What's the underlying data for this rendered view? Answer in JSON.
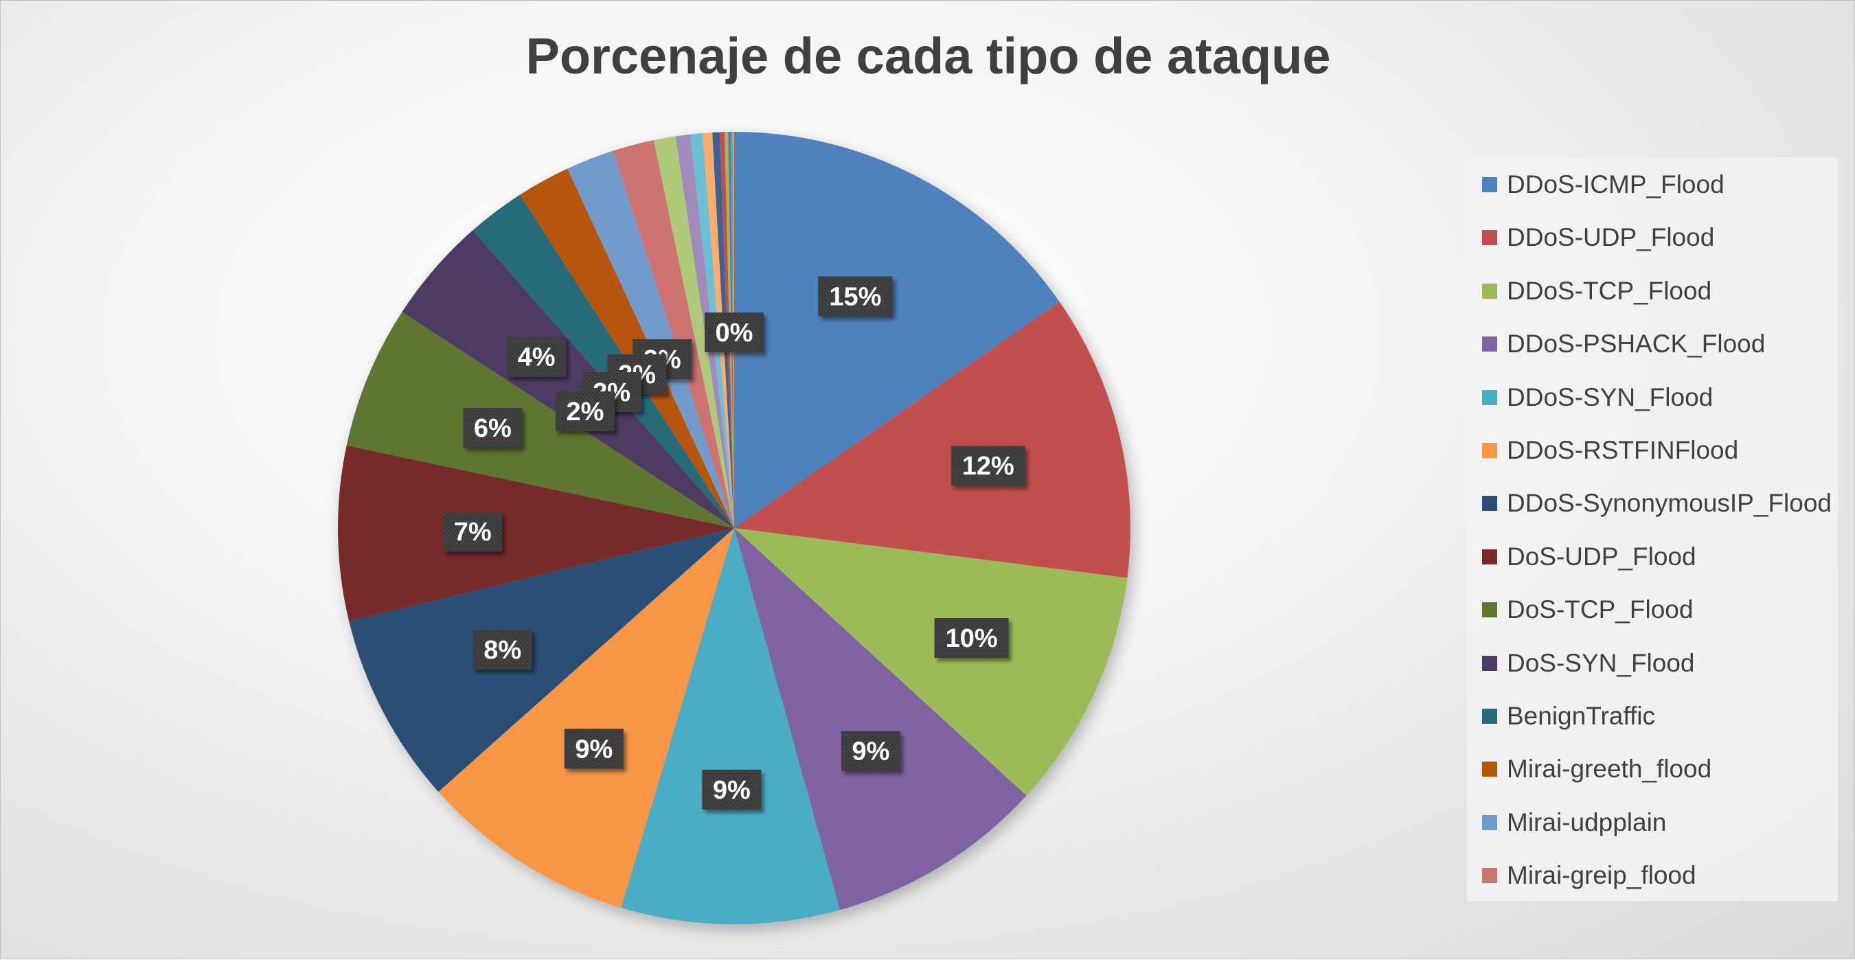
{
  "chart_data": {
    "type": "pie",
    "title": "Porcenaje de cada tipo de ataque",
    "legend_position": "right",
    "start_angle_deg": 0,
    "slices": [
      {
        "name": "DDoS-ICMP_Flood",
        "value": 15.5,
        "label": "15%",
        "color": "#4F81BD"
      },
      {
        "name": "DDoS-UDP_Flood",
        "value": 11.8,
        "label": "12%",
        "color": "#C0504D"
      },
      {
        "name": "DDoS-TCP_Flood",
        "value": 9.9,
        "label": "10%",
        "color": "#9BBB59"
      },
      {
        "name": "DDoS-PSHACK_Flood",
        "value": 9.0,
        "label": "9%",
        "color": "#8064A2"
      },
      {
        "name": "DDoS-SYN_Flood",
        "value": 9.0,
        "label": "9%",
        "color": "#4BACC6"
      },
      {
        "name": "DDoS-RSTFINFlood",
        "value": 8.9,
        "label": "9%",
        "color": "#F79646"
      },
      {
        "name": "DDoS-SynonymousIP_Flood",
        "value": 7.9,
        "label": "8%",
        "color": "#2C4D75"
      },
      {
        "name": "DoS-UDP_Flood",
        "value": 7.2,
        "label": "7%",
        "color": "#772C2A"
      },
      {
        "name": "DoS-TCP_Flood",
        "value": 5.9,
        "label": "6%",
        "color": "#5F7530"
      },
      {
        "name": "DoS-SYN_Flood",
        "value": 4.4,
        "label": "4%",
        "color": "#4D3B62"
      },
      {
        "name": "BenignTraffic",
        "value": 2.4,
        "label": "2%",
        "color": "#276A7C"
      },
      {
        "name": "Mirai-greeth_flood",
        "value": 2.2,
        "label": "2%",
        "color": "#B65708"
      },
      {
        "name": "Mirai-udpplain",
        "value": 2.0,
        "label": "2%",
        "color": "#729ACA"
      },
      {
        "name": "Mirai-greip_flood",
        "value": 1.7,
        "label": "2%",
        "color": "#CD7371"
      },
      {
        "name": "",
        "value": 0.9,
        "label": "",
        "color": "#AFC97A"
      },
      {
        "name": "",
        "value": 0.6,
        "label": "",
        "color": "#A18BBD"
      },
      {
        "name": "",
        "value": 0.5,
        "label": "",
        "color": "#6EBED4"
      },
      {
        "name": "",
        "value": 0.4,
        "label": "",
        "color": "#F9AC6C"
      },
      {
        "name": "",
        "value": 0.3,
        "label": "",
        "color": "#3A6496"
      },
      {
        "name": "",
        "value": 0.2,
        "label": "",
        "color": "#C0504D"
      },
      {
        "name": "",
        "value": 0.15,
        "label": "",
        "color": "#9BBB59"
      },
      {
        "name": "",
        "value": 0.1,
        "label": "",
        "color": "#8064A2"
      },
      {
        "name": "",
        "value": 0.08,
        "label": "",
        "color": "#4BACC6"
      },
      {
        "name": "",
        "value": 0.06,
        "label": "0%",
        "color": "#F79646"
      }
    ]
  }
}
